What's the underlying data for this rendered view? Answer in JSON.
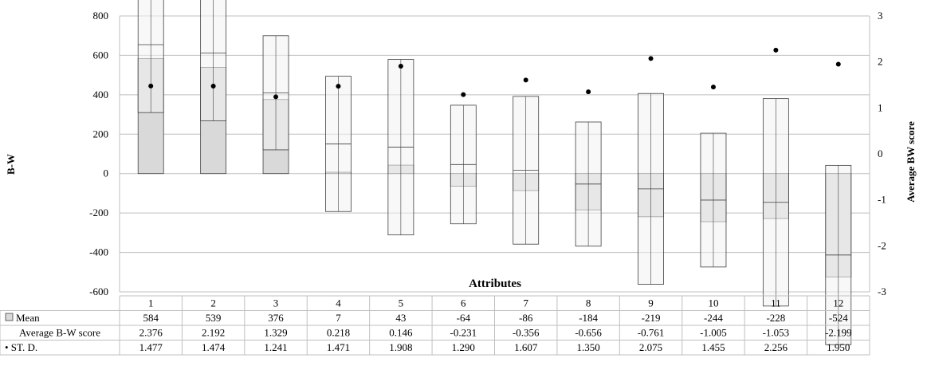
{
  "chart_data": {
    "type": "bar",
    "title": "",
    "xlabel": "Attributes",
    "ylabel": "B-W",
    "y2label": "Average BW score",
    "ylim": [
      -600,
      800
    ],
    "y2lim": [
      -3,
      3
    ],
    "y_ticks": [
      "800",
      "600",
      "400",
      "200",
      "0",
      "-200",
      "-400",
      "-600"
    ],
    "y2_ticks": [
      "3",
      "2",
      "1",
      "0",
      "-1",
      "-2",
      "-3"
    ],
    "categories": [
      "1",
      "2",
      "3",
      "4",
      "5",
      "6",
      "7",
      "8",
      "9",
      "10",
      "11",
      "12"
    ],
    "series": [
      {
        "name": "Mean",
        "values": [
          584,
          539,
          376,
          7,
          43,
          -64,
          -86,
          -184,
          -219,
          -244,
          -228,
          -524
        ]
      },
      {
        "name": "Average B-W score",
        "values": [
          2.376,
          2.192,
          1.329,
          0.218,
          0.146,
          -0.231,
          -0.356,
          -0.656,
          -0.761,
          -1.005,
          -1.053,
          -2.199
        ]
      },
      {
        "name": "ST. D.",
        "values": [
          1.477,
          1.474,
          1.241,
          1.471,
          1.908,
          1.29,
          1.607,
          1.35,
          2.075,
          1.455,
          2.256,
          1.95
        ]
      }
    ],
    "table": {
      "headers": [
        "1",
        "2",
        "3",
        "4",
        "5",
        "6",
        "7",
        "8",
        "9",
        "10",
        "11",
        "12"
      ],
      "rows": [
        {
          "label": "Mean",
          "cells": [
            "584",
            "539",
            "376",
            "7",
            "43",
            "-64",
            "-86",
            "-184",
            "-219",
            "-244",
            "-228",
            "-524"
          ]
        },
        {
          "label": "Average B-W score",
          "cells": [
            "2.376",
            "2.192",
            "1.329",
            "0.218",
            "0.146",
            "-0.231",
            "-0.356",
            "-0.656",
            "-0.761",
            "-1.005",
            "-1.053",
            "-2.199"
          ]
        },
        {
          "label": "• ST. D.",
          "cells": [
            "1.477",
            "1.474",
            "1.241",
            "1.471",
            "1.908",
            "1.290",
            "1.607",
            "1.350",
            "2.075",
            "1.455",
            "2.256",
            "1.950"
          ]
        }
      ]
    },
    "grid": true,
    "colors": {
      "mean_bar": "#d9d9d9",
      "sd_box": "#f2f2f2",
      "outline": "#404040",
      "grid": "#bfbfbf",
      "marker": "#000000"
    }
  }
}
